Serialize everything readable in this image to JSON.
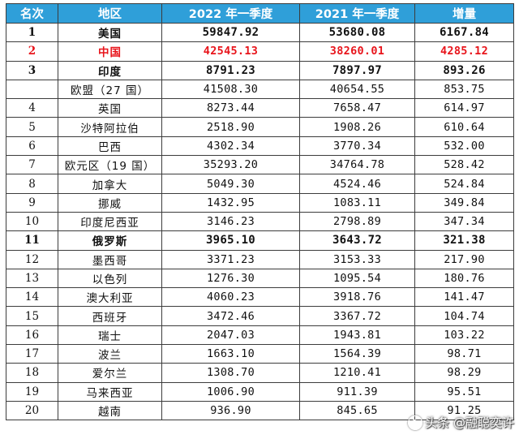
{
  "headers": {
    "rank": "名次",
    "region": "地区",
    "q2022": "2022 年一季度",
    "q2021": "2021 年一季度",
    "growth": "增量"
  },
  "rows": [
    {
      "rank": "1",
      "region": "美国",
      "q2022": "59847.92",
      "q2021": "53680.08",
      "growth": "6167.84"
    },
    {
      "rank": "2",
      "region": "中国",
      "q2022": "42545.13",
      "q2021": "38260.01",
      "growth": "4285.12"
    },
    {
      "rank": "3",
      "region": "印度",
      "q2022": "8791.23",
      "q2021": "7897.97",
      "growth": "893.26"
    },
    {
      "rank": "",
      "region": "欧盟（27 国）",
      "q2022": "41508.30",
      "q2021": "40654.55",
      "growth": "853.75"
    },
    {
      "rank": "4",
      "region": "英国",
      "q2022": "8273.44",
      "q2021": "7658.47",
      "growth": "614.97"
    },
    {
      "rank": "5",
      "region": "沙特阿拉伯",
      "q2022": "2518.90",
      "q2021": "1908.26",
      "growth": "610.64"
    },
    {
      "rank": "6",
      "region": "巴西",
      "q2022": "4302.34",
      "q2021": "3770.34",
      "growth": "532.00"
    },
    {
      "rank": "7",
      "region": "欧元区（19 国）",
      "q2022": "35293.20",
      "q2021": "34764.78",
      "growth": "528.42"
    },
    {
      "rank": "8",
      "region": "加拿大",
      "q2022": "5049.30",
      "q2021": "4524.46",
      "growth": "524.84"
    },
    {
      "rank": "9",
      "region": "挪威",
      "q2022": "1432.95",
      "q2021": "1083.11",
      "growth": "349.84"
    },
    {
      "rank": "10",
      "region": "印度尼西亚",
      "q2022": "3146.23",
      "q2021": "2798.89",
      "growth": "347.34"
    },
    {
      "rank": "11",
      "region": "俄罗斯",
      "q2022": "3965.10",
      "q2021": "3643.72",
      "growth": "321.38"
    },
    {
      "rank": "12",
      "region": "墨西哥",
      "q2022": "3371.23",
      "q2021": "3153.33",
      "growth": "217.90"
    },
    {
      "rank": "13",
      "region": "以色列",
      "q2022": "1276.30",
      "q2021": "1095.54",
      "growth": "180.76"
    },
    {
      "rank": "14",
      "region": "澳大利亚",
      "q2022": "4060.23",
      "q2021": "3918.76",
      "growth": "141.47"
    },
    {
      "rank": "15",
      "region": "西班牙",
      "q2022": "3472.46",
      "q2021": "3367.72",
      "growth": "104.74"
    },
    {
      "rank": "16",
      "region": "瑞士",
      "q2022": "2047.03",
      "q2021": "1943.81",
      "growth": "103.22"
    },
    {
      "rank": "17",
      "region": "波兰",
      "q2022": "1663.10",
      "q2021": "1564.39",
      "growth": "98.71"
    },
    {
      "rank": "18",
      "region": "爱尔兰",
      "q2022": "1308.70",
      "q2021": "1210.41",
      "growth": "98.29"
    },
    {
      "rank": "19",
      "region": "马来西亚",
      "q2022": "1006.90",
      "q2021": "911.39",
      "growth": "95.51"
    },
    {
      "rank": "20",
      "region": "越南",
      "q2022": "936.90",
      "q2021": "845.65",
      "growth": "91.25"
    }
  ],
  "styles": {
    "header_bg": "#2f9fd9",
    "header_text": "#ffffff",
    "highlight_text": "#e8141b"
  },
  "watermark": {
    "text": "头条 @融聪奕许",
    "icon": "toutiao-logo-icon"
  }
}
